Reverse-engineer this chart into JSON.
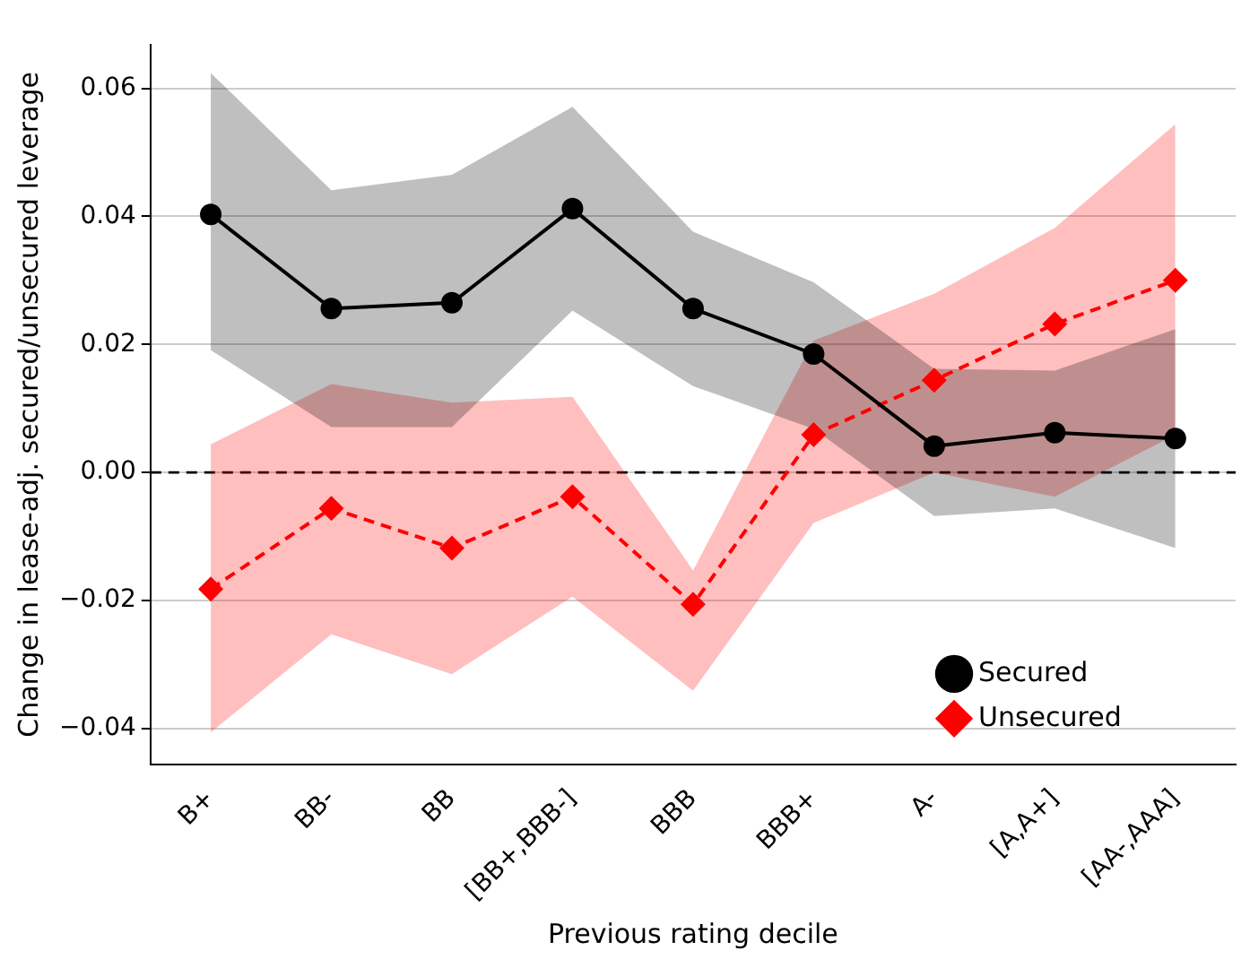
{
  "chart_data": {
    "type": "line",
    "xlabel": "Previous rating decile",
    "ylabel": "Change in lease-adj. secured/unsecured leverage",
    "categories": [
      "B+",
      "BB-",
      "BB",
      "[BB+,BBB-]",
      "BBB",
      "BBB+",
      "A-",
      "[A,A+]",
      "[AA-,AAA]"
    ],
    "series": [
      {
        "name": "Secured",
        "color": "#000000",
        "marker": "circle",
        "line_style": "solid",
        "values": [
          0.0403,
          0.0256,
          0.0265,
          0.0412,
          0.0256,
          0.0185,
          0.0041,
          0.0062,
          0.0053
        ],
        "lower": [
          0.0191,
          0.0071,
          0.0071,
          0.0253,
          0.0135,
          0.0068,
          -0.0068,
          -0.0056,
          -0.0118
        ],
        "upper": [
          0.0624,
          0.0441,
          0.0465,
          0.0571,
          0.0376,
          0.0297,
          0.0162,
          0.0159,
          0.0224
        ]
      },
      {
        "name": "Unsecured",
        "color": "#ff0000",
        "marker": "diamond",
        "line_style": "dashed",
        "values": [
          -0.0182,
          -0.0056,
          -0.0118,
          -0.0038,
          -0.0206,
          0.0059,
          0.0144,
          0.0232,
          0.03
        ],
        "lower": [
          -0.0406,
          -0.0253,
          -0.0315,
          -0.0194,
          -0.0341,
          -0.0079,
          0.0,
          -0.0038,
          0.0059
        ],
        "upper": [
          0.0044,
          0.0138,
          0.0109,
          0.0118,
          -0.0153,
          0.0206,
          0.0279,
          0.0382,
          0.0544
        ]
      }
    ],
    "ylim": [
      -0.0456,
      0.0668
    ],
    "yticks": [
      {
        "value": -0.04,
        "label": "−0.04"
      },
      {
        "value": -0.02,
        "label": "−0.02"
      },
      {
        "value": 0,
        "label": "0.00"
      },
      {
        "value": 0.02,
        "label": "0.02"
      },
      {
        "value": 0.04,
        "label": "0.04"
      },
      {
        "value": 0.06,
        "label": "0.06"
      }
    ],
    "grid": "y",
    "legend": "bottom right",
    "ref_lines": [
      {
        "axis": "y",
        "value": 0,
        "color": "#000000",
        "line_style": "dashed"
      }
    ]
  }
}
